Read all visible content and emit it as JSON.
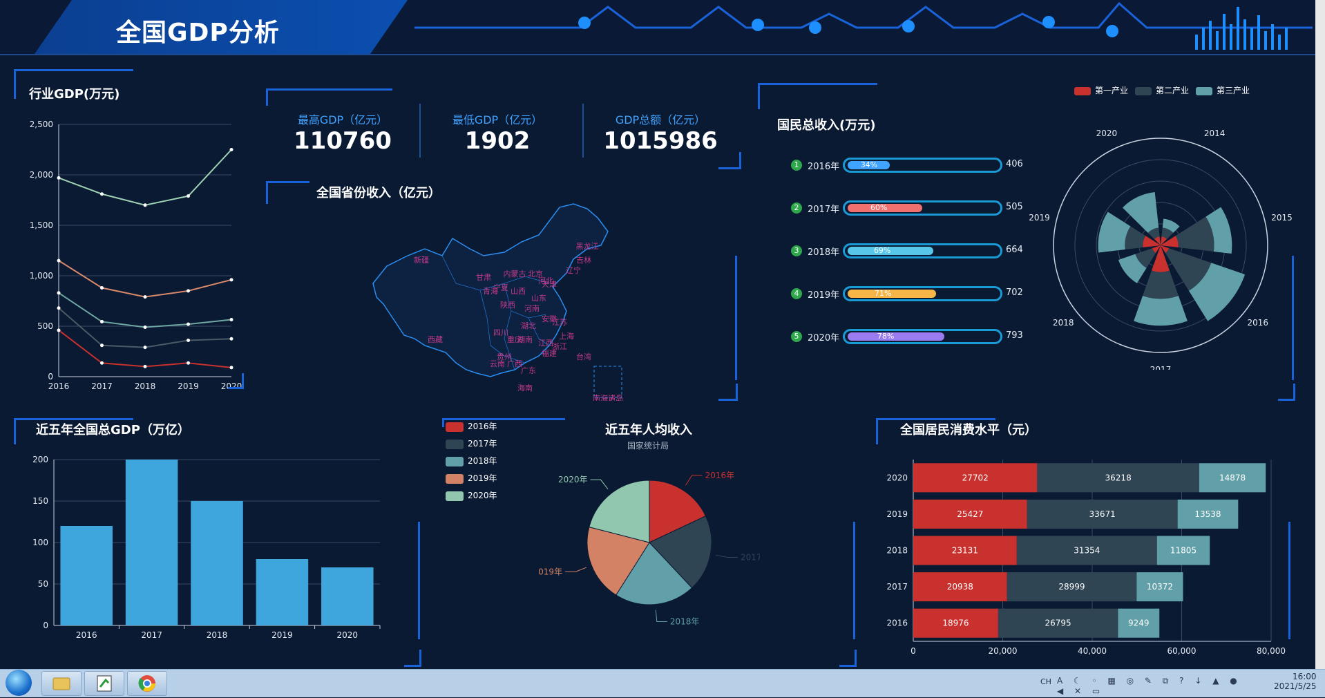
{
  "header": {
    "title": "全国GDP分析"
  },
  "industry_gdp": {
    "title": "行业GDP(万元)",
    "chart_data": {
      "type": "line",
      "x": [
        "2016",
        "2017",
        "2018",
        "2019",
        "2020"
      ],
      "ylim": [
        0,
        2500
      ],
      "yticks": [
        "0",
        "500",
        "1,000",
        "1,500",
        "2,000",
        "2,500"
      ],
      "series": [
        {
          "values": [
            1970,
            1810,
            1700,
            1790,
            2250
          ],
          "color": "#9fd3b4"
        },
        {
          "values": [
            1150,
            880,
            790,
            850,
            960
          ],
          "color": "#d88a6a"
        },
        {
          "values": [
            830,
            545,
            490,
            520,
            565
          ],
          "color": "#6fa7a3"
        },
        {
          "values": [
            680,
            310,
            290,
            360,
            375
          ],
          "color": "#4a5a66"
        },
        {
          "values": [
            460,
            135,
            100,
            135,
            90
          ],
          "color": "#c8312d"
        }
      ]
    }
  },
  "kpis": [
    {
      "label": "最高GDP（亿元）",
      "value": "110760"
    },
    {
      "label": "最低GDP（亿元）",
      "value": "1902"
    },
    {
      "label": "GDP总额（亿元）",
      "value": "1015986"
    }
  ],
  "province_map": {
    "title": "全国省份收入（亿元）",
    "labels": [
      "新疆",
      "西藏",
      "青海",
      "甘肃",
      "四川",
      "云南",
      "贵州",
      "广西",
      "广东",
      "湖南",
      "湖北",
      "江西",
      "福建",
      "浙江",
      "江苏",
      "安徽",
      "河南",
      "山东",
      "山西",
      "陕西",
      "宁夏",
      "内蒙古",
      "黑龙江",
      "吉林",
      "辽宁",
      "河北",
      "北京",
      "天津",
      "上海",
      "重庆",
      "海南",
      "台湾",
      "南海诸岛"
    ]
  },
  "national_income": {
    "title": "国民总收入(万元)",
    "rows": [
      {
        "rank": "1",
        "year": "2016年",
        "percent": 34,
        "percent_label": "34%",
        "value": "406",
        "color": "#3fa3ff"
      },
      {
        "rank": "2",
        "year": "2017年",
        "percent": 60,
        "percent_label": "60%",
        "value": "505",
        "color": "#f07070"
      },
      {
        "rank": "3",
        "year": "2018年",
        "percent": 69,
        "percent_label": "69%",
        "value": "664",
        "color": "#56c7e8"
      },
      {
        "rank": "4",
        "year": "2019年",
        "percent": 71,
        "percent_label": "71%",
        "value": "702",
        "color": "#f5b547"
      },
      {
        "rank": "5",
        "year": "2020年",
        "percent": 78,
        "percent_label": "78%",
        "value": "793",
        "color": "#9b7bf0"
      }
    ]
  },
  "polar": {
    "legend": [
      {
        "name": "第一产业",
        "color": "#c8312d"
      },
      {
        "name": "第二产业",
        "color": "#2f4554"
      },
      {
        "name": "第三产业",
        "color": "#61a0a8"
      }
    ],
    "chart_data": {
      "type": "bar",
      "categories": [
        "2014",
        "2015",
        "2016",
        "2017",
        "2018",
        "2019",
        "2020"
      ],
      "series": [
        {
          "name": "第一产业",
          "values": [
            1,
            2,
            1,
            3,
            1,
            2,
            1
          ]
        },
        {
          "name": "第二产业",
          "values": [
            1,
            4,
            5,
            3,
            2,
            2,
            1
          ]
        },
        {
          "name": "第三产业",
          "values": [
            1,
            2,
            4,
            3,
            2,
            3,
            4
          ]
        }
      ]
    }
  },
  "total_gdp": {
    "title": "近五年全国总GDP（万亿）",
    "chart_data": {
      "type": "bar",
      "categories": [
        "2016",
        "2017",
        "2018",
        "2019",
        "2020"
      ],
      "values": [
        120,
        200,
        150,
        80,
        70
      ],
      "ylim": [
        0,
        200
      ],
      "yticks": [
        "0",
        "50",
        "100",
        "150",
        "200"
      ],
      "color": "#3ea6dc"
    }
  },
  "per_capita": {
    "title": "近五年人均收入",
    "subtitle": "国家统计局",
    "legend": [
      {
        "name": "2016年",
        "color": "#c8312d"
      },
      {
        "name": "2017年",
        "color": "#2f4554"
      },
      {
        "name": "2018年",
        "color": "#61a0a8"
      },
      {
        "name": "2019年",
        "color": "#d48265"
      },
      {
        "name": "2020年",
        "color": "#91c7ae"
      }
    ],
    "chart_data": {
      "type": "pie",
      "categories": [
        "2016年",
        "2017年",
        "2018年",
        "2019年",
        "2020年"
      ],
      "values": [
        18,
        20,
        21,
        20,
        21
      ]
    }
  },
  "consumption": {
    "title": "全国居民消费水平（元）",
    "chart_data": {
      "type": "bar",
      "orientation": "horizontal",
      "categories": [
        "2020",
        "2019",
        "2018",
        "2017",
        "2016"
      ],
      "xlim": [
        0,
        80000
      ],
      "xticks": [
        "0",
        "20,000",
        "40,000",
        "60,000",
        "80,000"
      ],
      "series": [
        {
          "values": [
            27702,
            25427,
            23131,
            20938,
            18976
          ],
          "color": "#c8312d"
        },
        {
          "values": [
            36218,
            33671,
            31354,
            28999,
            26795
          ],
          "color": "#2f4554"
        },
        {
          "values": [
            14878,
            13538,
            11805,
            10372,
            9249
          ],
          "color": "#61a0a8"
        }
      ]
    }
  },
  "taskbar": {
    "time": "16:00",
    "date": "2021/5/25",
    "lang": "CH"
  }
}
